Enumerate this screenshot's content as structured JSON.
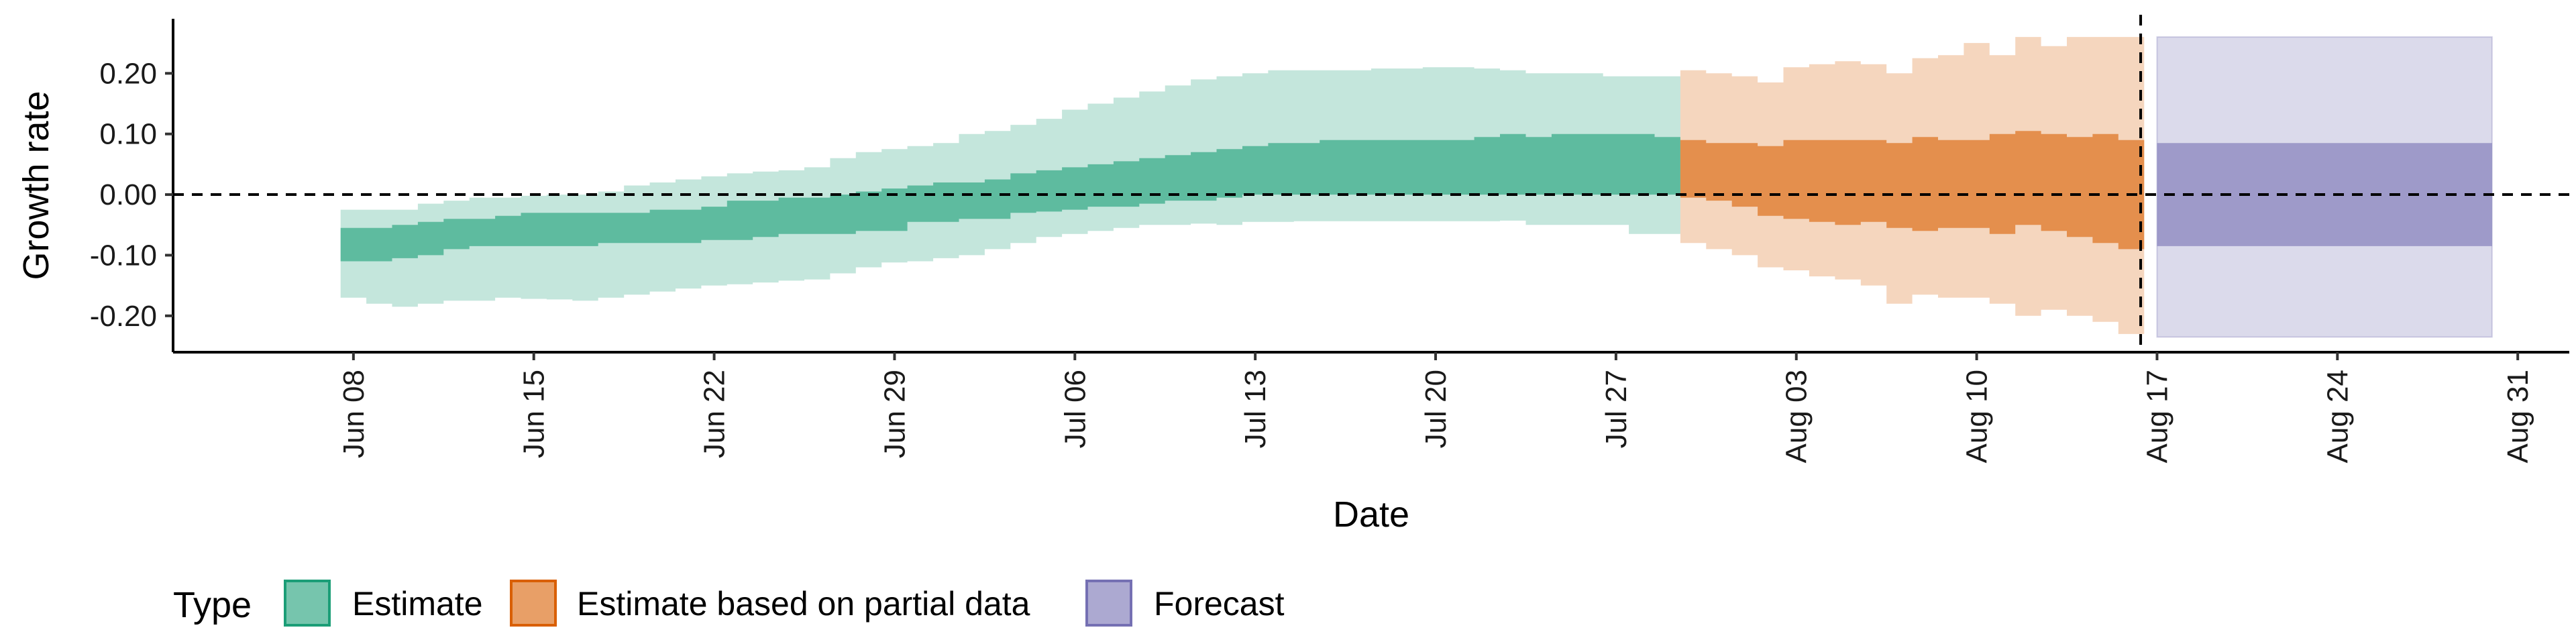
{
  "chart_data": {
    "type": "area",
    "title": "",
    "xlabel": "Date",
    "ylabel": "Growth rate",
    "ylim": [
      -0.26,
      0.29
    ],
    "xlim": [
      "2020-06-01",
      "2020-09-02"
    ],
    "y_ticks": [
      {
        "value": 0.2,
        "label": "0.20"
      },
      {
        "value": 0.1,
        "label": "0.10"
      },
      {
        "value": 0.0,
        "label": "0.00"
      },
      {
        "value": -0.1,
        "label": "-0.10"
      },
      {
        "value": -0.2,
        "label": "-0.20"
      }
    ],
    "x_ticks": [
      {
        "date": "2020-06-08",
        "label": "Jun 08"
      },
      {
        "date": "2020-06-15",
        "label": "Jun 15"
      },
      {
        "date": "2020-06-22",
        "label": "Jun 22"
      },
      {
        "date": "2020-06-29",
        "label": "Jun 29"
      },
      {
        "date": "2020-07-06",
        "label": "Jul 06"
      },
      {
        "date": "2020-07-13",
        "label": "Jul 13"
      },
      {
        "date": "2020-07-20",
        "label": "Jul 20"
      },
      {
        "date": "2020-07-27",
        "label": "Jul 27"
      },
      {
        "date": "2020-08-03",
        "label": "Aug 03"
      },
      {
        "date": "2020-08-10",
        "label": "Aug 10"
      },
      {
        "date": "2020-08-17",
        "label": "Aug 17"
      },
      {
        "date": "2020-08-24",
        "label": "Aug 24"
      },
      {
        "date": "2020-08-31",
        "label": "Aug 31"
      }
    ],
    "reference_lines": [
      {
        "axis": "y",
        "value": 0.0,
        "style": "dashed"
      },
      {
        "axis": "x",
        "value": "2020-08-16",
        "style": "dashed"
      }
    ],
    "grid": false,
    "legend": {
      "position": "bottom-left",
      "title": "Type"
    },
    "series": [
      {
        "name": "Estimate",
        "color": "#1b9e77",
        "x": [
          "2020-06-08",
          "2020-06-09",
          "2020-06-10",
          "2020-06-11",
          "2020-06-12",
          "2020-06-13",
          "2020-06-14",
          "2020-06-15",
          "2020-06-16",
          "2020-06-17",
          "2020-06-18",
          "2020-06-19",
          "2020-06-20",
          "2020-06-21",
          "2020-06-22",
          "2020-06-23",
          "2020-06-24",
          "2020-06-25",
          "2020-06-26",
          "2020-06-27",
          "2020-06-28",
          "2020-06-29",
          "2020-06-30",
          "2020-07-01",
          "2020-07-02",
          "2020-07-03",
          "2020-07-04",
          "2020-07-05",
          "2020-07-06",
          "2020-07-07",
          "2020-07-08",
          "2020-07-09",
          "2020-07-10",
          "2020-07-11",
          "2020-07-12",
          "2020-07-13",
          "2020-07-14",
          "2020-07-15",
          "2020-07-16",
          "2020-07-17",
          "2020-07-18",
          "2020-07-19",
          "2020-07-20",
          "2020-07-21",
          "2020-07-22",
          "2020-07-23",
          "2020-07-24",
          "2020-07-25",
          "2020-07-26",
          "2020-07-27",
          "2020-07-28",
          "2020-07-29"
        ],
        "lower_90": [
          -0.17,
          -0.18,
          -0.185,
          -0.18,
          -0.175,
          -0.175,
          -0.17,
          -0.172,
          -0.173,
          -0.175,
          -0.17,
          -0.165,
          -0.16,
          -0.155,
          -0.15,
          -0.148,
          -0.145,
          -0.142,
          -0.14,
          -0.13,
          -0.12,
          -0.112,
          -0.11,
          -0.105,
          -0.1,
          -0.09,
          -0.08,
          -0.07,
          -0.065,
          -0.06,
          -0.055,
          -0.05,
          -0.05,
          -0.048,
          -0.05,
          -0.045,
          -0.045,
          -0.044,
          -0.044,
          -0.044,
          -0.044,
          -0.044,
          -0.044,
          -0.044,
          -0.044,
          -0.043,
          -0.05,
          -0.05,
          -0.05,
          -0.05,
          -0.065,
          -0.065
        ],
        "upper_90": [
          -0.025,
          -0.025,
          -0.025,
          -0.015,
          -0.01,
          -0.005,
          -0.005,
          -0.002,
          0.0,
          0.0,
          0.005,
          0.015,
          0.02,
          0.025,
          0.03,
          0.035,
          0.038,
          0.04,
          0.045,
          0.06,
          0.07,
          0.075,
          0.08,
          0.085,
          0.1,
          0.105,
          0.115,
          0.125,
          0.14,
          0.15,
          0.16,
          0.17,
          0.18,
          0.19,
          0.195,
          0.2,
          0.205,
          0.205,
          0.205,
          0.205,
          0.208,
          0.208,
          0.21,
          0.21,
          0.208,
          0.205,
          0.2,
          0.2,
          0.2,
          0.195,
          0.195,
          0.195
        ],
        "lower_50": [
          -0.11,
          -0.11,
          -0.105,
          -0.1,
          -0.09,
          -0.085,
          -0.085,
          -0.085,
          -0.085,
          -0.085,
          -0.08,
          -0.08,
          -0.08,
          -0.08,
          -0.075,
          -0.075,
          -0.07,
          -0.065,
          -0.065,
          -0.065,
          -0.06,
          -0.06,
          -0.045,
          -0.045,
          -0.04,
          -0.04,
          -0.03,
          -0.028,
          -0.025,
          -0.02,
          -0.02,
          -0.015,
          -0.01,
          -0.01,
          -0.005,
          0.0,
          0.0,
          0.0,
          0.0,
          0.0,
          0.0,
          0.0,
          0.0,
          0.0,
          0.0,
          0.0,
          0.0,
          0.0,
          0.0,
          0.0,
          0.0,
          0.0
        ],
        "upper_50": [
          -0.055,
          -0.055,
          -0.05,
          -0.045,
          -0.04,
          -0.04,
          -0.035,
          -0.03,
          -0.03,
          -0.03,
          -0.03,
          -0.03,
          -0.025,
          -0.025,
          -0.02,
          -0.01,
          -0.01,
          -0.005,
          -0.005,
          0.0,
          0.005,
          0.01,
          0.015,
          0.02,
          0.02,
          0.025,
          0.035,
          0.04,
          0.045,
          0.05,
          0.055,
          0.06,
          0.065,
          0.07,
          0.075,
          0.08,
          0.085,
          0.085,
          0.09,
          0.09,
          0.09,
          0.09,
          0.09,
          0.09,
          0.095,
          0.1,
          0.095,
          0.1,
          0.1,
          0.1,
          0.1,
          0.095
        ]
      },
      {
        "name": "Estimate based on partial data",
        "color": "#d95f02",
        "x": [
          "2020-07-30",
          "2020-07-31",
          "2020-08-01",
          "2020-08-02",
          "2020-08-03",
          "2020-08-04",
          "2020-08-05",
          "2020-08-06",
          "2020-08-07",
          "2020-08-08",
          "2020-08-09",
          "2020-08-10",
          "2020-08-11",
          "2020-08-12",
          "2020-08-13",
          "2020-08-14",
          "2020-08-15",
          "2020-08-16"
        ],
        "lower_90": [
          -0.08,
          -0.09,
          -0.1,
          -0.12,
          -0.125,
          -0.135,
          -0.14,
          -0.15,
          -0.18,
          -0.165,
          -0.17,
          -0.17,
          -0.18,
          -0.2,
          -0.19,
          -0.2,
          -0.21,
          -0.23
        ],
        "upper_90": [
          0.205,
          0.2,
          0.195,
          0.185,
          0.21,
          0.215,
          0.22,
          0.215,
          0.2,
          0.225,
          0.23,
          0.25,
          0.23,
          0.26,
          0.245,
          0.26,
          0.26,
          0.26
        ],
        "lower_50": [
          -0.005,
          -0.01,
          -0.02,
          -0.035,
          -0.04,
          -0.045,
          -0.05,
          -0.045,
          -0.055,
          -0.06,
          -0.055,
          -0.055,
          -0.065,
          -0.05,
          -0.06,
          -0.07,
          -0.08,
          -0.09
        ],
        "upper_50": [
          0.09,
          0.085,
          0.085,
          0.08,
          0.09,
          0.09,
          0.09,
          0.09,
          0.085,
          0.095,
          0.09,
          0.09,
          0.1,
          0.105,
          0.1,
          0.095,
          0.1,
          0.09
        ]
      },
      {
        "name": "Forecast",
        "color": "#7570b3",
        "x": [
          "2020-08-17",
          "2020-08-30"
        ],
        "lower_90": [
          -0.235,
          -0.235
        ],
        "upper_90": [
          0.26,
          0.26
        ],
        "lower_50": [
          -0.085,
          -0.085
        ],
        "upper_50": [
          0.085,
          0.085
        ]
      }
    ]
  }
}
